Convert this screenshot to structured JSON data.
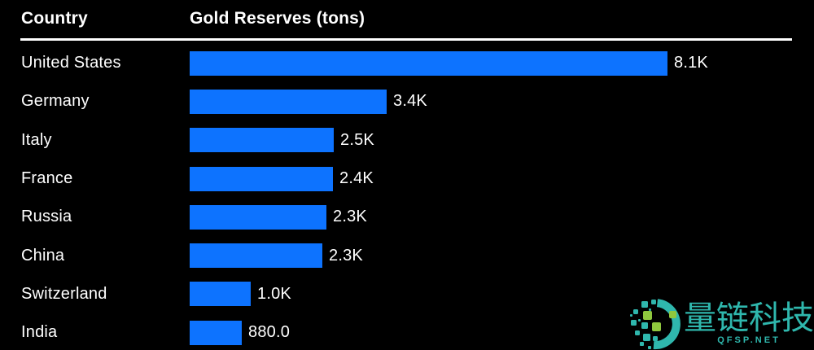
{
  "table": {
    "country_header": "Country",
    "value_header": "Gold Reserves (tons)"
  },
  "chart_data": {
    "type": "bar",
    "orientation": "horizontal",
    "title": "Gold Reserves (tons)",
    "xlabel": "Gold Reserves (tons)",
    "ylabel": "Country",
    "categories": [
      "United States",
      "Germany",
      "Italy",
      "France",
      "Russia",
      "China",
      "Switzerland",
      "India"
    ],
    "values": [
      8133,
      3355,
      2452,
      2437,
      2330,
      2264,
      1040,
      880
    ],
    "value_labels": [
      "8.1K",
      "3.4K",
      "2.5K",
      "2.4K",
      "2.3K",
      "2.3K",
      "1.0K",
      "880.0"
    ],
    "unit": "tons",
    "xlim": [
      0,
      8133
    ],
    "grid": false,
    "legend": false,
    "bar_color": "#0d73ff",
    "label_color": "#ffffff",
    "background": "#000000"
  },
  "watermark": {
    "brand_text": "量链科技",
    "url_text": "QFSP.NET",
    "teal_color": "#2fb7ad",
    "green_color": "#8fc73e",
    "logo_icon": "pixel-mosaic-circle-logo"
  }
}
